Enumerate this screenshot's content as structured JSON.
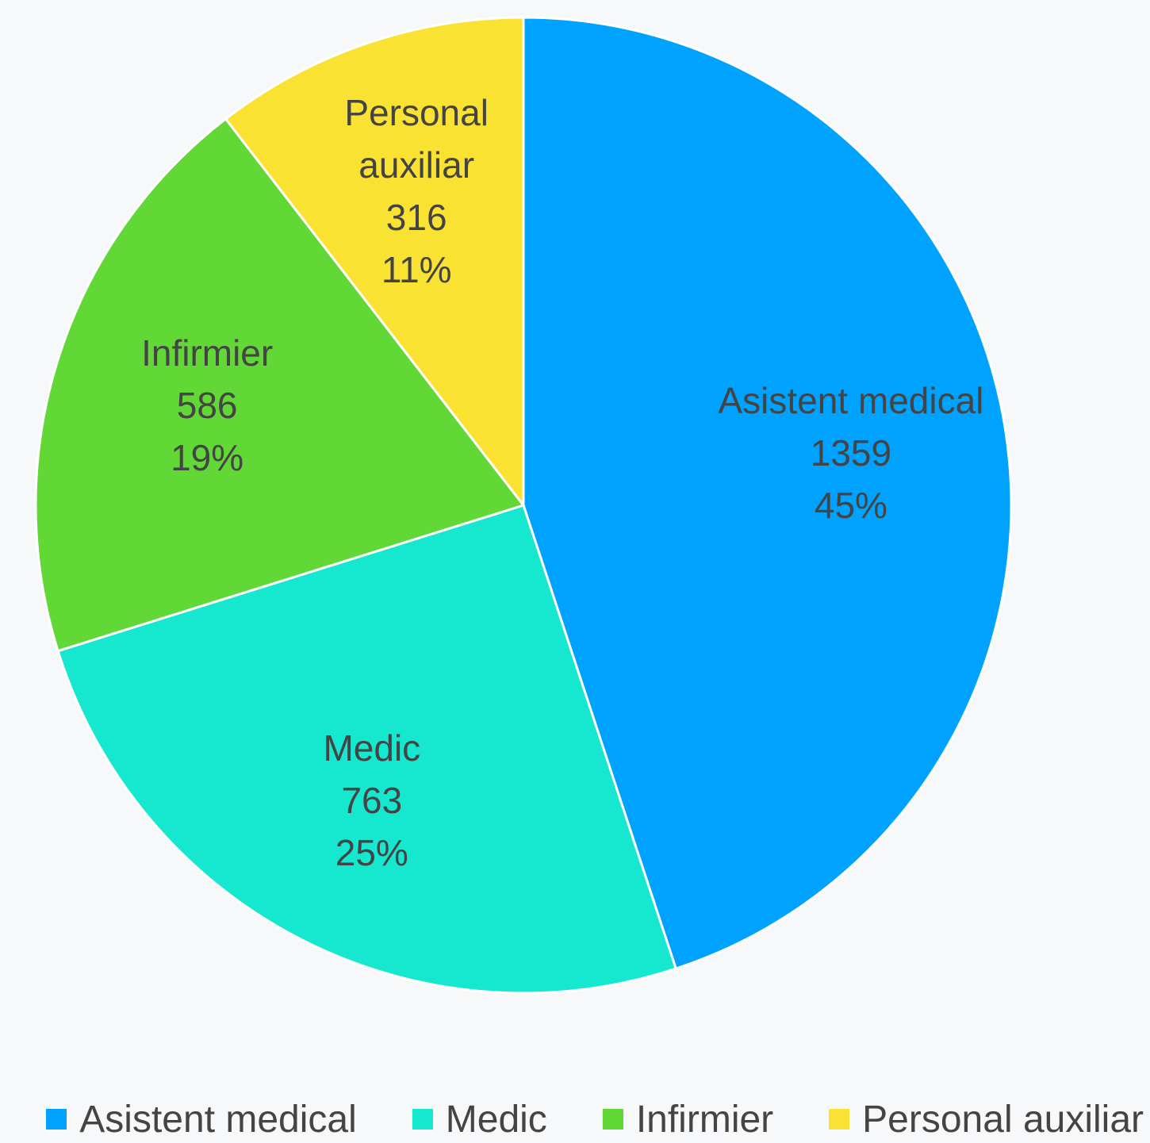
{
  "chart_data": {
    "type": "pie",
    "categories": [
      "Asistent medical",
      "Medic",
      "Infirmier",
      "Personal auxiliar"
    ],
    "values": [
      1359,
      763,
      586,
      316
    ],
    "percent_labels": [
      "45%",
      "25%",
      "19%",
      "11%"
    ],
    "colors": [
      "#00a2ff",
      "#16e7cf",
      "#61d836",
      "#fae232"
    ],
    "legend": "bottom"
  }
}
